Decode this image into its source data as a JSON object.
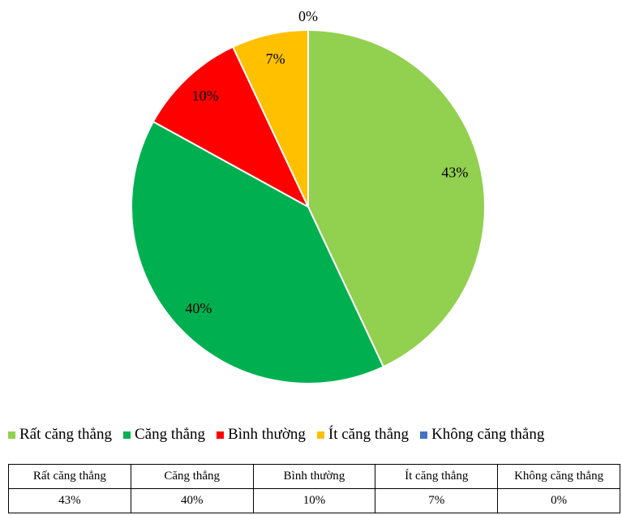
{
  "chart_data": {
    "type": "pie",
    "categories": [
      "Rất căng thẳng",
      "Căng thẳng",
      "Bình thường",
      "Ít căng thẳng",
      "Không căng thẳng"
    ],
    "values": [
      43,
      40,
      10,
      7,
      0
    ],
    "value_labels": [
      "43%",
      "40%",
      "10%",
      "7%",
      "0%"
    ],
    "colors": [
      "#92d050",
      "#00b050",
      "#ff0000",
      "#ffc000",
      "#4472c4"
    ]
  }
}
